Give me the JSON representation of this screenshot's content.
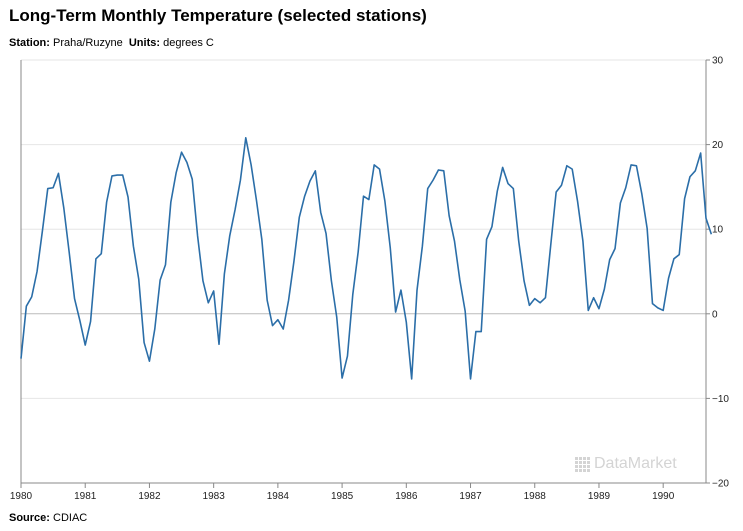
{
  "header": {
    "title": "Long-Term Monthly Temperature (selected stations)",
    "station_label": "Station:",
    "station_value": "Praha/Ruzyne",
    "units_label": "Units:",
    "units_value": "degrees C"
  },
  "footer": {
    "source_label": "Source:",
    "source_value": "CDIAC"
  },
  "watermark": {
    "text": "DataMarket",
    "icon": "datamarket-dots-icon"
  },
  "colors": {
    "line": "#2b6ea8",
    "grid": "#e6e6e6",
    "zero_line": "#bbbbbb",
    "axis": "#888888"
  },
  "chart_data": {
    "type": "line",
    "x_unit": "month",
    "x_start": "1980-01",
    "xlim": [
      "1980-01",
      "1990-09"
    ],
    "x_ticks": [
      "1980",
      "1981",
      "1982",
      "1983",
      "1984",
      "1985",
      "1986",
      "1987",
      "1988",
      "1989",
      "1990"
    ],
    "ylim": [
      -20,
      30
    ],
    "y_ticks": [
      30,
      20,
      10,
      0,
      -10,
      -20
    ],
    "y_axis_side": "right",
    "grid": true,
    "series": [
      {
        "values": [
          -5.3,
          0.9,
          2.0,
          5.0,
          9.8,
          14.8,
          14.9,
          16.6,
          12.5,
          7.3,
          1.8,
          -0.8,
          -3.7,
          -0.9,
          6.5,
          7.1,
          13.2,
          16.3,
          16.4,
          16.4,
          13.8,
          8.0,
          4.1,
          -3.4,
          -5.6,
          -1.8,
          4.0,
          5.8,
          13.2,
          16.7,
          19.1,
          17.9,
          15.9,
          9.2,
          3.9,
          1.3,
          2.7,
          -3.6,
          4.7,
          9.2,
          12.3,
          15.8,
          20.8,
          17.6,
          13.4,
          8.8,
          1.6,
          -1.4,
          -0.7,
          -1.8,
          1.6,
          6.2,
          11.4,
          13.9,
          15.7,
          16.9,
          12.0,
          9.5,
          3.9,
          -0.4,
          -7.6,
          -5.0,
          2.3,
          7.3,
          13.9,
          13.5,
          17.6,
          17.1,
          13.3,
          7.8,
          0.2,
          2.8,
          -1.0,
          -7.7,
          2.8,
          8.0,
          14.8,
          15.8,
          17.0,
          16.9,
          11.6,
          8.6,
          4.0,
          0.3,
          -7.7,
          -2.1,
          -2.1,
          8.8,
          10.3,
          14.5,
          17.3,
          15.4,
          14.8,
          8.6,
          3.9,
          1.0,
          1.8,
          1.3,
          1.9,
          8.2,
          14.4,
          15.2,
          17.5,
          17.1,
          13.3,
          8.6,
          0.4,
          1.9,
          0.6,
          2.9,
          6.4,
          7.7,
          13.1,
          14.9,
          17.6,
          17.5,
          14.2,
          10.1,
          1.2,
          0.7,
          0.4,
          4.2,
          6.5,
          7.0,
          13.6,
          16.2,
          16.9,
          19.0,
          11.3,
          9.4
        ]
      }
    ]
  }
}
